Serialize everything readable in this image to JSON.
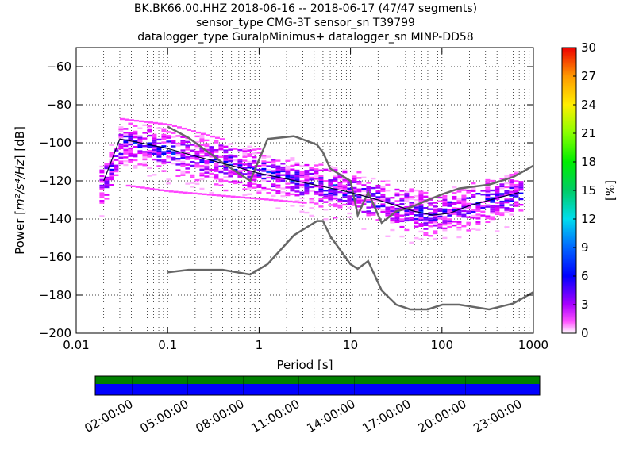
{
  "title_lines": [
    "BK.BK66.00.HHZ   2018-06-16 -- 2018-06-17  (47/47 segments)",
    "sensor_type CMG-3T sensor_sn T39799",
    "datalogger_type GuralpMinimus+ datalogger_sn MINP-DD58"
  ],
  "chart_data": {
    "type": "heatmap",
    "title": "BK.BK66.00.HHZ   2018-06-16 -- 2018-06-17  (47/47 segments)",
    "subtitle": "sensor_type CMG-3T sensor_sn T39799 / datalogger_type GuralpMinimus+ datalogger_sn MINP-DD58",
    "xlabel": "Period [s]",
    "ylabel_prefix": "Power [",
    "ylabel_unit": "m²/s⁴/Hz",
    "ylabel_suffix": "] [dB]",
    "x_scale": "log",
    "xlim": [
      0.01,
      1000
    ],
    "ylim": [
      -200,
      -50
    ],
    "x_ticks": [
      0.01,
      0.1,
      1,
      10,
      100,
      1000
    ],
    "x_tick_labels": [
      "0.01",
      "0.1",
      "1",
      "10",
      "100",
      "1000"
    ],
    "y_ticks": [
      -200,
      -180,
      -160,
      -140,
      -120,
      -100,
      -80,
      -60
    ],
    "y_tick_labels": [
      "−200",
      "−180",
      "−160",
      "−140",
      "−120",
      "−100",
      "−80",
      "−60"
    ],
    "grid": "dotted",
    "colorbar": {
      "label": "[%]",
      "range": [
        0,
        30
      ],
      "ticks": [
        0,
        3,
        6,
        9,
        12,
        15,
        18,
        21,
        24,
        27,
        30
      ],
      "tick_labels": [
        "0",
        "3",
        "6",
        "9",
        "12",
        "15",
        "18",
        "21",
        "24",
        "27",
        "30"
      ]
    },
    "noise_models": [
      {
        "name": "high noise model",
        "x": [
          0.1,
          0.17,
          0.4,
          0.8,
          1.24,
          2.4,
          4.3,
          5.0,
          6.0,
          10,
          12,
          15.6,
          21.9,
          31.6,
          45,
          70,
          101,
          154,
          328,
          600,
          1000
        ],
        "y": [
          -91.5,
          -97.4,
          -110.5,
          -120,
          -98.0,
          -96.5,
          -101,
          -105,
          -113.5,
          -120,
          -138,
          -126,
          -142,
          -136,
          -134,
          -130,
          -127,
          -124,
          -122,
          -118,
          -112
        ]
      },
      {
        "name": "low noise model",
        "x": [
          0.1,
          0.17,
          0.4,
          0.8,
          1.24,
          2.4,
          4.3,
          5.0,
          6.0,
          10,
          12,
          15.6,
          21.9,
          31.6,
          45,
          70,
          101,
          154,
          328,
          600,
          1000
        ],
        "y": [
          -168,
          -166.7,
          -166.7,
          -169.2,
          -163.7,
          -148.6,
          -141.1,
          -141.1,
          -149,
          -163.8,
          -166.2,
          -162.1,
          -177.5,
          -185,
          -187.5,
          -187.5,
          -185,
          -185,
          -187.5,
          -184.4,
          -178.4
        ]
      }
    ],
    "mode_line": {
      "x": [
        0.02,
        0.03,
        0.05,
        0.1,
        0.2,
        0.5,
        1,
        2,
        5,
        10,
        20,
        50,
        80,
        120,
        200,
        400,
        700
      ],
      "y": [
        -120,
        -98,
        -100,
        -103,
        -107,
        -112,
        -116,
        -119,
        -123,
        -126,
        -130,
        -136,
        -138,
        -137,
        -133,
        -129,
        -126
      ]
    },
    "psd_density": {
      "x_range": [
        0.018,
        700
      ],
      "band_center": {
        "x": [
          0.018,
          0.03,
          0.05,
          0.1,
          0.3,
          1,
          3,
          10,
          30,
          80,
          200,
          700
        ],
        "y": [
          -122,
          -100,
          -101,
          -104,
          -109,
          -115,
          -120,
          -126,
          -133,
          -138,
          -132,
          -126
        ]
      },
      "band_upper_offset": 12,
      "band_lower_offset": 18,
      "outlier_lines": [
        {
          "x": [
            0.03,
            0.1,
            0.4
          ],
          "y": [
            -87,
            -90,
            -98
          ]
        },
        {
          "x": [
            0.035,
            0.1,
            1,
            3
          ],
          "y": [
            -122,
            -125,
            -129,
            -131
          ]
        }
      ],
      "peak_percent": 8
    },
    "timeline": {
      "tick_labels": [
        "02:00:00",
        "05:00:00",
        "08:00:00",
        "11:00:00",
        "14:00:00",
        "17:00:00",
        "20:00:00",
        "23:00:00"
      ],
      "tick_hours": [
        2,
        5,
        8,
        11,
        14,
        17,
        20,
        23
      ],
      "span_hours": [
        0,
        24
      ],
      "upper_bar_color": "#008000",
      "lower_bar_color": "#0000ff"
    }
  }
}
